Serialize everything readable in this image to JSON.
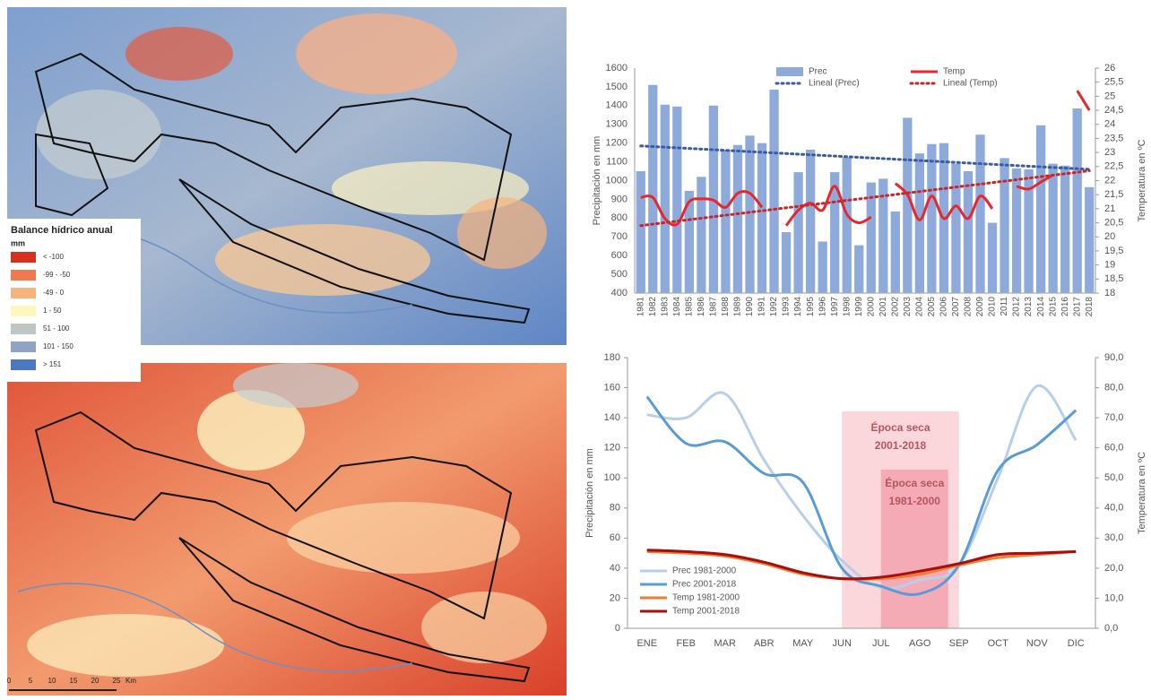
{
  "maps": {
    "legend": {
      "title": "Balance hídrico anual",
      "unit": "mm",
      "classes": [
        {
          "label": "< -100",
          "color": "#d7301f"
        },
        {
          "label": "-99 - -50",
          "color": "#f07a4f"
        },
        {
          "label": "-49 - 0",
          "color": "#f6b47c"
        },
        {
          "label": "1 - 50",
          "color": "#fdf7bb"
        },
        {
          "label": "51 - 100",
          "color": "#bfc7c4"
        },
        {
          "label": "101 - 150",
          "color": "#8fa3c4"
        },
        {
          "label": "> 151",
          "color": "#4a78c2"
        }
      ]
    },
    "scale": {
      "ticks": [
        0,
        5,
        10,
        15,
        20,
        25
      ],
      "unit": "Km"
    }
  },
  "chart_data": [
    {
      "type": "bar_line",
      "ylabel": "Precipitación en mm",
      "y2label": "Temperatura en ºC",
      "categories": [
        "1981",
        "1982",
        "1983",
        "1984",
        "1985",
        "1986",
        "1987",
        "1988",
        "1989",
        "1990",
        "1991",
        "1992",
        "1993",
        "1994",
        "1995",
        "1996",
        "1997",
        "1998",
        "1999",
        "2000",
        "2001",
        "2002",
        "2003",
        "2004",
        "2005",
        "2006",
        "2007",
        "2008",
        "2009",
        "2010",
        "2011",
        "2012",
        "2013",
        "2014",
        "2015",
        "2016",
        "2017",
        "2018"
      ],
      "series": [
        {
          "name": "Prec",
          "kind": "bar",
          "color": "#8eaadb",
          "values": [
            1050,
            1510,
            1405,
            1395,
            945,
            1020,
            1400,
            1165,
            1190,
            1240,
            1200,
            1485,
            725,
            1045,
            1165,
            675,
            1045,
            1125,
            655,
            990,
            1010,
            835,
            1335,
            1145,
            1195,
            1200,
            1090,
            1050,
            1245,
            775,
            1120,
            1065,
            1060,
            1295,
            1090,
            1080,
            1385,
            965
          ]
        },
        {
          "name": "Temp",
          "kind": "line",
          "axis": "y2",
          "color": "#e8262b",
          "values": [
            21.4,
            21.4,
            20.65,
            20.45,
            21.25,
            21.35,
            21.3,
            21.05,
            21.55,
            21.55,
            21.05,
            null,
            20.4,
            20.95,
            21.2,
            20.95,
            21.8,
            20.8,
            20.5,
            20.7,
            null,
            21.9,
            21.5,
            20.6,
            21.45,
            20.65,
            21.1,
            20.65,
            21.45,
            21.0,
            null,
            21.8,
            21.7,
            21.95,
            22.2,
            null,
            25.2,
            24.5
          ]
        },
        {
          "name": "Lineal (Prec)",
          "kind": "trend",
          "color": "#3a5ba5",
          "x": [
            "1981",
            "2018"
          ],
          "values": [
            1185,
            1060
          ]
        },
        {
          "name": "Lineal (Temp)",
          "kind": "trend",
          "axis": "y2",
          "color": "#c9262b",
          "x": [
            "1981",
            "2018"
          ],
          "values": [
            20.4,
            22.35
          ]
        }
      ],
      "ylim": [
        400,
        1600
      ],
      "yticks": [
        400,
        500,
        600,
        700,
        800,
        900,
        1000,
        1100,
        1200,
        1300,
        1400,
        1500,
        1600
      ],
      "y2lim": [
        18,
        26
      ],
      "y2ticks": [
        18,
        {
          "value": 18.5,
          "label": "18,5"
        },
        19,
        {
          "value": 19.5,
          "label": "19,5"
        },
        20,
        {
          "value": 20.5,
          "label": "20,5"
        },
        21,
        {
          "value": 21.5,
          "label": "21,5"
        },
        22,
        {
          "value": 22.5,
          "label": "22,5"
        },
        23,
        {
          "value": 23.5,
          "label": "23,5"
        },
        24,
        {
          "value": 24.5,
          "label": "24,5"
        },
        25,
        {
          "value": 25.5,
          "label": "25,5"
        },
        26
      ],
      "legend": "top"
    },
    {
      "type": "line",
      "ylabel": "Precipitación en mm",
      "y2label": "Temperatura en ºC",
      "categories": [
        "ENE",
        "FEB",
        "MAR",
        "ABR",
        "MAY",
        "JUN",
        "JUL",
        "AGO",
        "SEP",
        "OCT",
        "NOV",
        "DIC"
      ],
      "series": [
        {
          "name": "Prec 1981-2000",
          "color": "#b8cfe8",
          "values": [
            142,
            140,
            156,
            112,
            75,
            45,
            27,
            32,
            42,
            100,
            161,
            125
          ]
        },
        {
          "name": "Prec 2001-2018",
          "color": "#5b9bd5",
          "values": [
            154,
            123,
            124,
            103,
            97,
            40,
            28,
            23,
            42,
            105,
            122,
            145
          ]
        },
        {
          "name": "Temp 1981-2000",
          "axis": "y2",
          "color": "#ed7d31",
          "values": [
            25.5,
            25,
            24,
            21.5,
            18,
            16.5,
            16.5,
            18,
            21,
            23.5,
            24.5,
            25.5
          ]
        },
        {
          "name": "Temp 2001-2018",
          "axis": "y2",
          "color": "#a50f0f",
          "values": [
            26,
            25.5,
            24.5,
            22,
            18.5,
            16.5,
            17,
            19,
            21.5,
            24.5,
            25,
            25.5
          ]
        }
      ],
      "ylim": [
        0,
        180
      ],
      "yticks": [
        0,
        20,
        40,
        60,
        80,
        100,
        120,
        140,
        160,
        180
      ],
      "y2lim": [
        0,
        90
      ],
      "y2ticks": [
        {
          "value": 0,
          "label": "0,0"
        },
        {
          "value": 10,
          "label": "10,0"
        },
        {
          "value": 20,
          "label": "20,0"
        },
        {
          "value": 30,
          "label": "30,0"
        },
        {
          "value": 40,
          "label": "40,0"
        },
        {
          "value": 50,
          "label": "50,0"
        },
        {
          "value": 60,
          "label": "60,0"
        },
        {
          "value": 70,
          "label": "70,0"
        },
        {
          "value": 80,
          "label": "80,0"
        },
        {
          "value": 90,
          "label": "90,0"
        }
      ],
      "annotations": [
        {
          "lines": [
            "Época seca",
            "2001-2018"
          ],
          "start": "JUN",
          "end": "SEP",
          "color": "#f9c9cf"
        },
        {
          "lines": [
            "Época seca",
            "1981-2000"
          ],
          "start": "JUL",
          "end": "SEP",
          "color": "#f29ca8"
        }
      ],
      "legend": "lower left"
    }
  ]
}
